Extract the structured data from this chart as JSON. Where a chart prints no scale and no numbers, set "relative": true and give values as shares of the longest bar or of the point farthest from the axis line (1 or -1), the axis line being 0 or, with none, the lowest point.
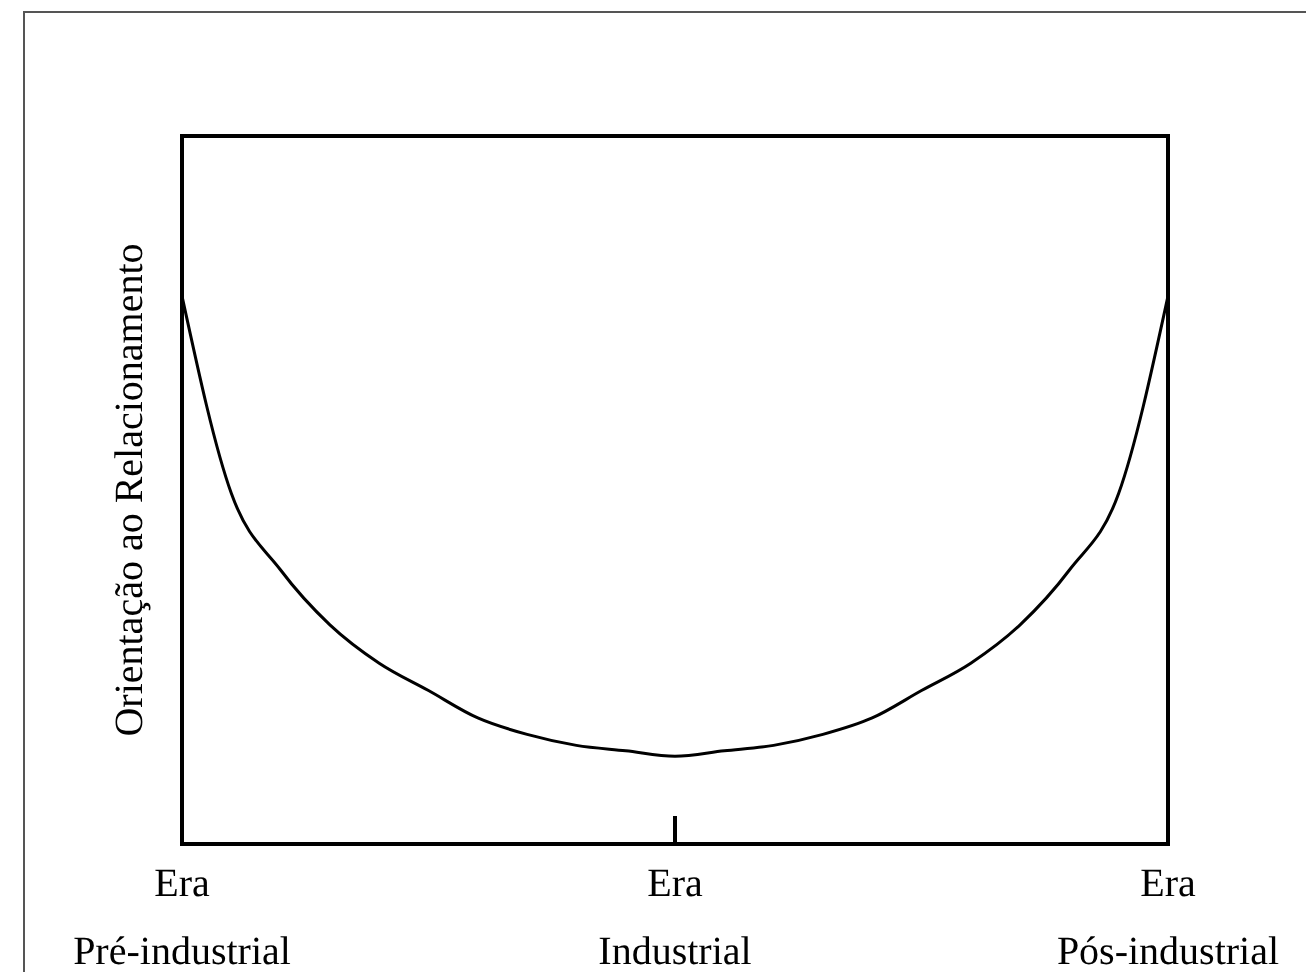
{
  "chart_data": {
    "type": "line",
    "ylabel": "Orientação ao Relacionamento",
    "relative": true,
    "categories": [
      "Era Pré-industrial",
      null,
      null,
      null,
      null,
      null,
      null,
      null,
      null,
      null,
      "Era Industrial",
      null,
      null,
      null,
      null,
      null,
      null,
      null,
      null,
      null,
      "Era Pós-industrial"
    ],
    "series": [
      {
        "color": "#000000",
        "values": [
          1,
          0.64,
          0.5,
          0.4,
          0.33,
          0.28,
          0.23,
          0.2,
          0.18,
          0.17,
          0.16,
          0.17,
          0.18,
          0.2,
          0.23,
          0.28,
          0.33,
          0.4,
          0.5,
          0.64,
          1
        ]
      }
    ]
  }
}
